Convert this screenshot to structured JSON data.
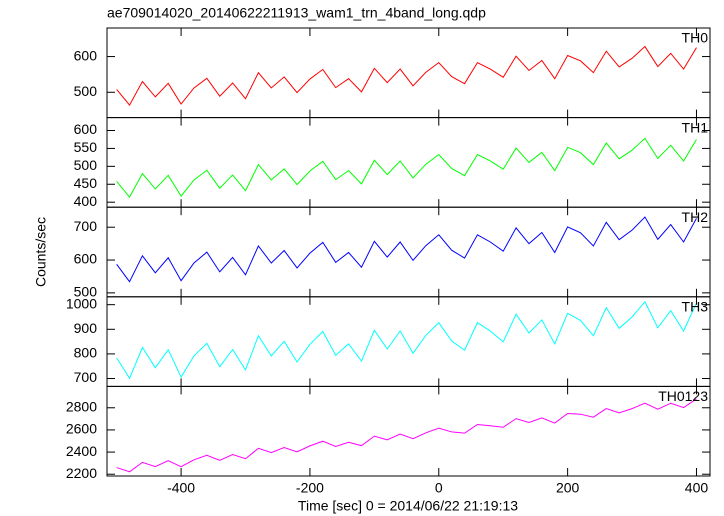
{
  "chart_data": {
    "type": "line",
    "title": "ae709014020_20140622211913_wam1_trn_4band_long.qdp",
    "xlabel": "Time [sec] 0 = 2014/06/22 21:19:13",
    "ylabel": "Counts/sec",
    "x": [
      -500,
      -480,
      -460,
      -440,
      -420,
      -400,
      -380,
      -360,
      -340,
      -320,
      -300,
      -280,
      -260,
      -240,
      -220,
      -200,
      -180,
      -160,
      -140,
      -120,
      -100,
      -80,
      -60,
      -40,
      -20,
      0,
      20,
      40,
      60,
      80,
      100,
      120,
      140,
      160,
      180,
      200,
      220,
      240,
      260,
      280,
      300,
      320,
      340,
      360,
      380,
      400
    ],
    "xlim": [
      -515,
      421
    ],
    "xticks": [
      -400,
      -200,
      0,
      200,
      400
    ],
    "series": [
      {
        "name": "TH0",
        "color": "#ff0000",
        "ylim": [
          429,
          680
        ],
        "yticks": [
          500,
          600
        ],
        "values": [
          508,
          464,
          530,
          487,
          525,
          467,
          512,
          539,
          489,
          526,
          482,
          555,
          512,
          543,
          499,
          537,
          564,
          513,
          538,
          501,
          567,
          527,
          565,
          518,
          556,
          583,
          544,
          524,
          583,
          565,
          542,
          601,
          561,
          589,
          538,
          603,
          588,
          555,
          615,
          571,
          595,
          628,
          572,
          609,
          565,
          625
        ]
      },
      {
        "name": "TH1",
        "color": "#00ff00",
        "ylim": [
          386,
          636
        ],
        "yticks": [
          400,
          450,
          500,
          550,
          600
        ],
        "values": [
          458,
          414,
          480,
          437,
          475,
          417,
          462,
          489,
          439,
          476,
          432,
          505,
          462,
          493,
          449,
          487,
          514,
          463,
          488,
          451,
          517,
          477,
          515,
          468,
          506,
          533,
          494,
          474,
          533,
          515,
          492,
          551,
          511,
          539,
          488,
          553,
          538,
          505,
          565,
          521,
          545,
          578,
          522,
          559,
          515,
          575
        ]
      },
      {
        "name": "TH2",
        "color": "#0000ff",
        "ylim": [
          488,
          761
        ],
        "yticks": [
          500,
          600,
          700
        ],
        "values": [
          587,
          534,
          613,
          561,
          607,
          537,
          591,
          624,
          564,
          608,
          555,
          643,
          591,
          629,
          576,
          621,
          654,
          593,
          623,
          578,
          657,
          609,
          655,
          599,
          644,
          677,
          630,
          606,
          677,
          655,
          627,
          698,
          650,
          684,
          623,
          701,
          683,
          643,
          715,
          662,
          691,
          731,
          663,
          708,
          655,
          727
        ]
      },
      {
        "name": "TH3",
        "color": "#00ffff",
        "ylim": [
          668,
          1032
        ],
        "yticks": [
          700,
          800,
          900,
          1000
        ],
        "values": [
          784,
          701,
          826,
          744,
          817,
          706,
          792,
          843,
          748,
          818,
          735,
          874,
          792,
          851,
          767,
          839,
          891,
          794,
          841,
          771,
          896,
          820,
          893,
          803,
          875,
          927,
          853,
          815,
          927,
          893,
          849,
          961,
          885,
          938,
          841,
          965,
          936,
          874,
          988,
          904,
          950,
          1012,
          906,
          976,
          893,
          1007
        ]
      },
      {
        "name": "TH0123",
        "color": "#ff00ff",
        "ylim": [
          2184,
          2993
        ],
        "yticks": [
          2200,
          2400,
          2600,
          2800
        ],
        "values": [
          2260,
          2222,
          2307,
          2269,
          2322,
          2268,
          2330,
          2371,
          2325,
          2378,
          2340,
          2434,
          2395,
          2441,
          2402,
          2456,
          2498,
          2451,
          2489,
          2458,
          2544,
          2510,
          2563,
          2521,
          2574,
          2616,
          2582,
          2571,
          2649,
          2638,
          2624,
          2702,
          2667,
          2709,
          2662,
          2748,
          2742,
          2715,
          2793,
          2754,
          2792,
          2842,
          2787,
          2841,
          2802,
          2880
        ]
      }
    ]
  }
}
